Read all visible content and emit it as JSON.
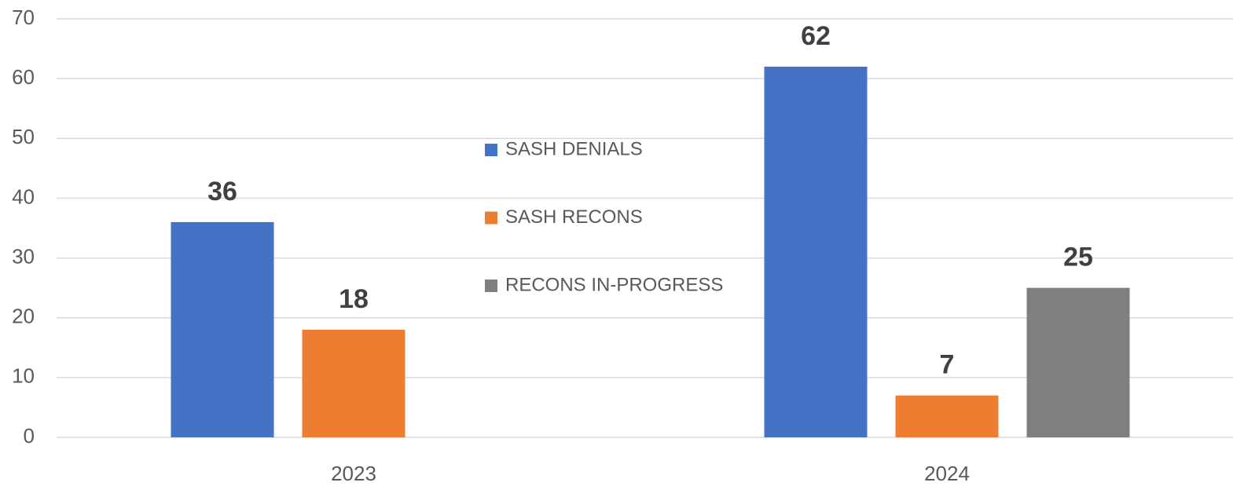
{
  "chart_data": {
    "type": "bar",
    "categories": [
      "2023",
      "2024"
    ],
    "series": [
      {
        "name": "SASH DENIALS",
        "color": "#4472c4",
        "values": [
          36,
          62
        ]
      },
      {
        "name": "SASH RECONS",
        "color": "#ed7d31",
        "values": [
          18,
          7
        ]
      },
      {
        "name": "RECONS IN-PROGRESS",
        "color": "#7f7f7f",
        "values": [
          null,
          25
        ]
      }
    ],
    "ylim": [
      0,
      70
    ],
    "yticks": [
      0,
      10,
      20,
      30,
      40,
      50,
      60,
      70
    ],
    "grid": true
  }
}
